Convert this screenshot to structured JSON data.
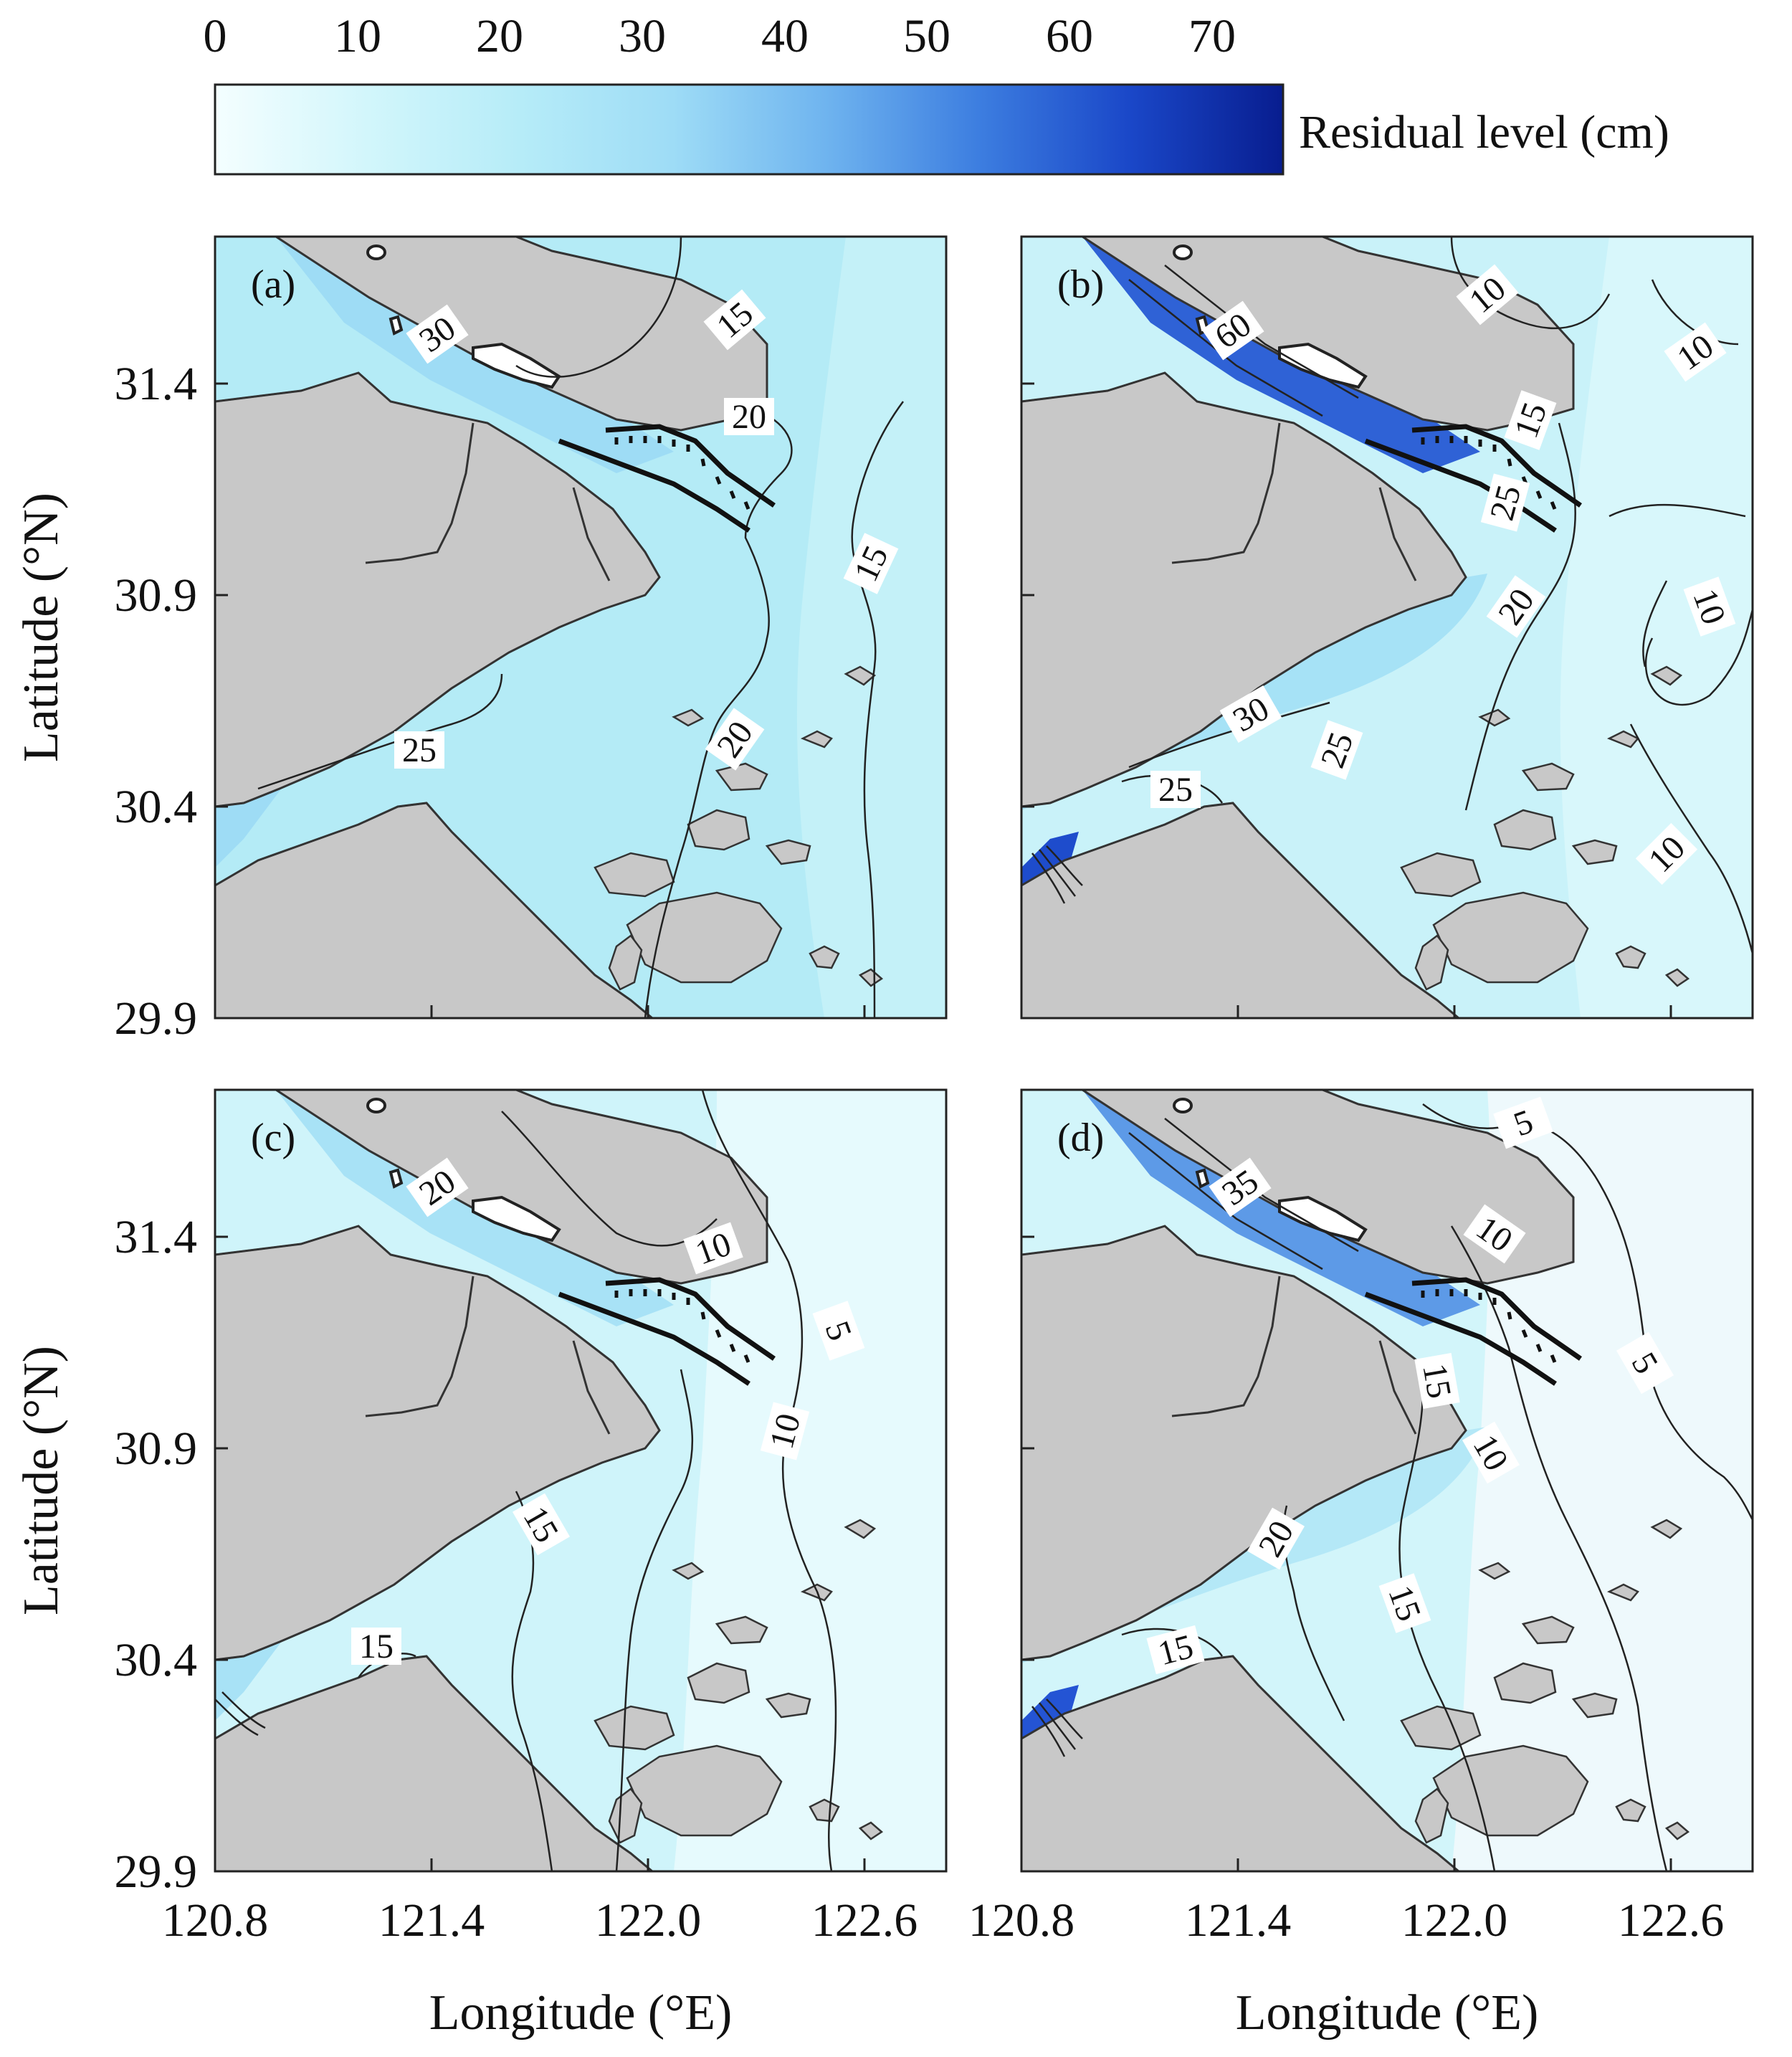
{
  "colorbar": {
    "ticks": [
      "0",
      "10",
      "20",
      "30",
      "40",
      "50",
      "60",
      "70"
    ],
    "title": "Residual level (cm)",
    "range": [
      0,
      75
    ],
    "stops": [
      "#f4feff",
      "#d2f6fb",
      "#b6ecf8",
      "#9edcf6",
      "#6fb4ef",
      "#3d7ee0",
      "#1a47c8",
      "#081d8f"
    ]
  },
  "axes": {
    "x_label": "Longitude (°E)",
    "y_label": "Latitude (°N)",
    "x_ticks": [
      "120.8",
      "121.4",
      "122.0",
      "122.6"
    ],
    "y_ticks": [
      "31.4",
      "30.9",
      "30.4",
      "29.9"
    ]
  },
  "colors": {
    "land": "#c8c8c8",
    "coast": "#333333",
    "island_white": "#ffffff"
  },
  "panels": [
    {
      "label": "(a)",
      "base_fill": "#b4ebf6",
      "east_fill": "#c4f1f8",
      "channel_fill": "#9edcf5",
      "contour_labels": [
        "30",
        "15",
        "20",
        "15",
        "20",
        "25"
      ]
    },
    {
      "label": "(b)",
      "base_fill": "#c9f2f9",
      "east_fill": "#d8f7fb",
      "channel_fill": "#2f62d6",
      "contour_labels": [
        "60",
        "10",
        "10",
        "15",
        "25",
        "20",
        "10",
        "30",
        "25",
        "25",
        "10"
      ]
    },
    {
      "label": "(c)",
      "base_fill": "#cff4fa",
      "east_fill": "#e6fafd",
      "channel_fill": "#a8e2f6",
      "contour_labels": [
        "20",
        "10",
        "5",
        "10",
        "15",
        "15"
      ]
    },
    {
      "label": "(d)",
      "base_fill": "#d2f5fa",
      "east_fill": "#eef9fc",
      "channel_fill": "#5d9ae7",
      "contour_labels": [
        "35",
        "5",
        "10",
        "5",
        "15",
        "10",
        "20",
        "15",
        "15"
      ]
    }
  ]
}
